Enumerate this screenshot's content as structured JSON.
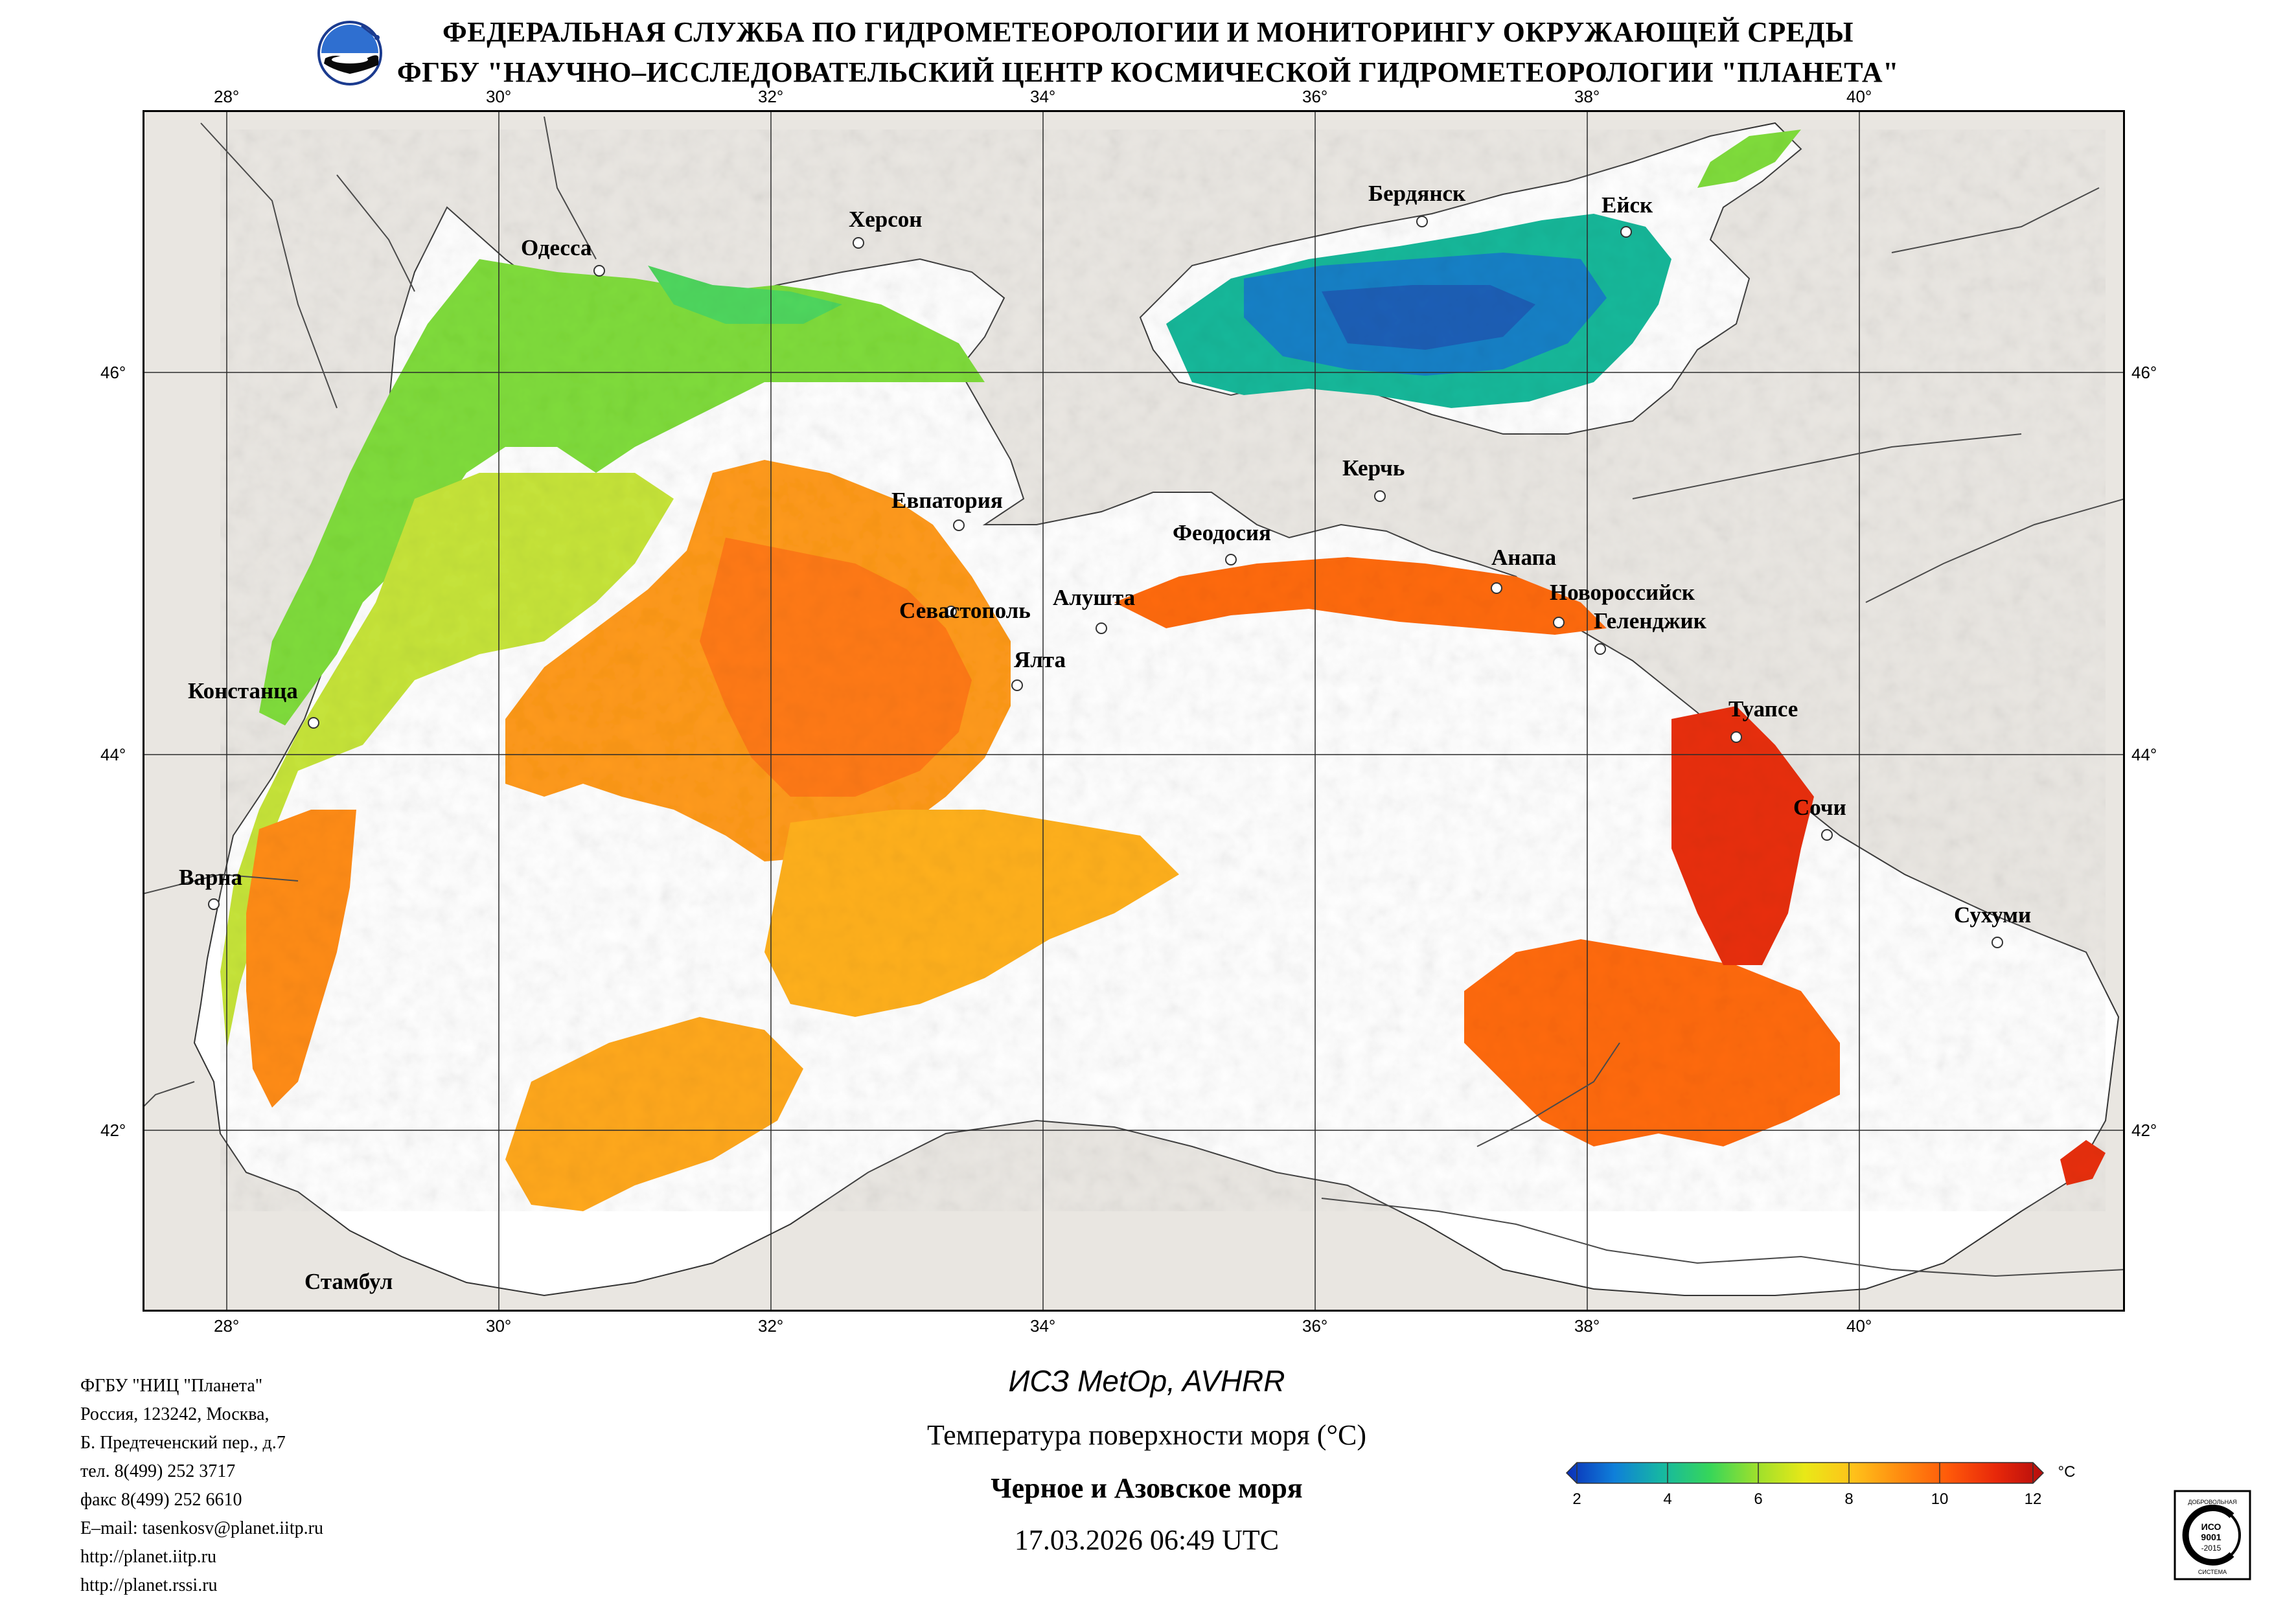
{
  "header": {
    "line1": "ФЕДЕРАЛЬНАЯ СЛУЖБА ПО ГИДРОМЕТЕОРОЛОГИИ И МОНИТОРИНГУ ОКРУЖАЮЩЕЙ СРЕДЫ",
    "line2": "ФГБУ \"НАУЧНО–ИССЛЕДОВАТЕЛЬСКИЙ ЦЕНТР КОСМИЧЕСКОЙ ГИДРОМЕТЕОРОЛОГИИ \"ПЛАНЕТА\""
  },
  "map": {
    "lon_ticks": [
      "28°",
      "30°",
      "32°",
      "34°",
      "36°",
      "38°",
      "40°"
    ],
    "lat_ticks": [
      "46°",
      "44°",
      "42°"
    ],
    "colors": {
      "land": "#e9e6e1",
      "sea_no_data": "#ffffff",
      "border": "#000000",
      "grid": "#2b2b2b"
    },
    "cities": [
      {
        "name": "Одесса"
      },
      {
        "name": "Херсон"
      },
      {
        "name": "Бердянск"
      },
      {
        "name": "Ейск"
      },
      {
        "name": "Евпатория"
      },
      {
        "name": "Керчь"
      },
      {
        "name": "Феодосия"
      },
      {
        "name": "Анапа"
      },
      {
        "name": "Севастополь"
      },
      {
        "name": "Алушта"
      },
      {
        "name": "Ялта"
      },
      {
        "name": "Новороссийск"
      },
      {
        "name": "Геленджик"
      },
      {
        "name": "Констанца"
      },
      {
        "name": "Туапсе"
      },
      {
        "name": "Сочи"
      },
      {
        "name": "Варна"
      },
      {
        "name": "Сухуми"
      },
      {
        "name": "Стамбул"
      }
    ]
  },
  "footer": {
    "contact": [
      "ФГБУ \"НИЦ \"Планета\"",
      "Россия, 123242, Москва,",
      "Б. Предтеченский пер., д.7",
      "тел. 8(499) 252 3717",
      "факс 8(499) 252 6610",
      "E–mail: tasenkosv@planet.iitp.ru",
      "http://planet.iitp.ru",
      "http://planet.rssi.ru"
    ],
    "satellite": "ИСЗ MetOp, AVHRR",
    "parameter": "Температура поверхности моря (°C)",
    "region": "Черное и Азовское моря",
    "datetime": "17.03.2026 06:49 UTC"
  },
  "colorbar": {
    "ticks": [
      "2",
      "4",
      "6",
      "8",
      "10",
      "12"
    ],
    "unit": "°C",
    "colors": [
      "#0b2fb8",
      "#0f7fd9",
      "#16b8a2",
      "#36d65a",
      "#9ee02c",
      "#e9e817",
      "#ffc21a",
      "#ff8c10",
      "#ff5a0a",
      "#e8280a",
      "#b50d0d"
    ]
  },
  "iso_badge": {
    "top_text": "ДОБРОВОЛЬНАЯ",
    "code": "ИСО",
    "num": "9001",
    "year": "-2015",
    "bottom_text": "СИСТЕМА"
  }
}
